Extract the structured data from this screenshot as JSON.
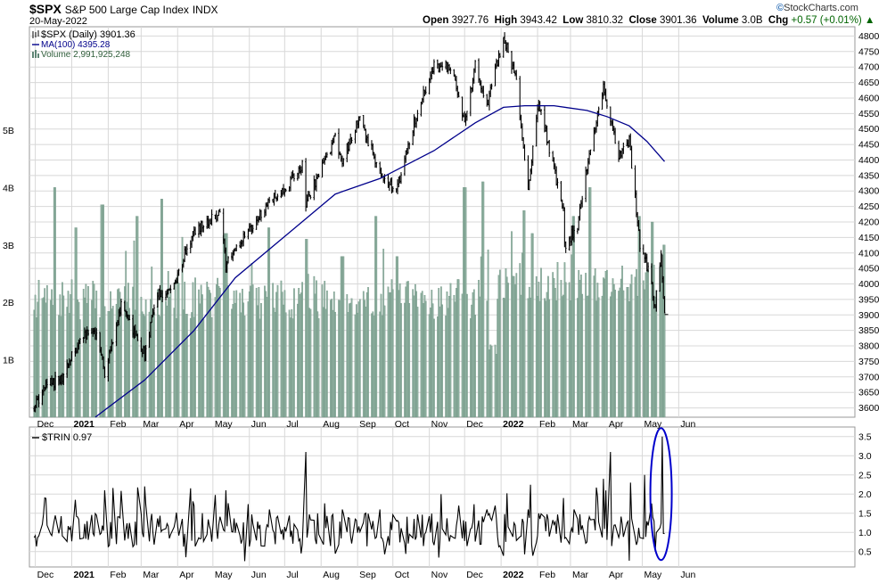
{
  "header": {
    "symbol": "$SPX",
    "name": "S&P 500 Large Cap Index",
    "exchange": "INDX",
    "date": "20-May-2022",
    "brand": "StockCharts.com",
    "open_label": "Open",
    "open": "3927.76",
    "high_label": "High",
    "high": "3943.42",
    "low_label": "Low",
    "low": "3810.32",
    "close_label": "Close",
    "close": "3901.36",
    "volume_label": "Volume",
    "volume": "3.0B",
    "chg_label": "Chg",
    "chg": "+0.57 (+0.01%)"
  },
  "colors": {
    "price": "#000000",
    "ma": "#00008b",
    "volume": "#8fb0a0",
    "volume_edge": "#5f8575",
    "highlight_ellipse": "#0000cc",
    "grid": "#d8d8d8"
  },
  "chart_data": [
    {
      "type": "line",
      "panel": "price",
      "legend": [
        {
          "label": "$SPX (Daily) 3901.36",
          "icon": "candlestick-icon"
        },
        {
          "label": "MA(100) 4395.28",
          "icon": "line-icon"
        },
        {
          "label": "Volume 2,991,925,248",
          "icon": "bar-icon"
        }
      ],
      "x_labels": [
        "Dec",
        "2021",
        "Feb",
        "Mar",
        "Apr",
        "May",
        "Jun",
        "Jul",
        "Aug",
        "Sep",
        "Oct",
        "Nov",
        "Dec",
        "2022",
        "Feb",
        "Mar",
        "Apr",
        "May",
        "Jun"
      ],
      "y_ticks": [
        3600,
        3650,
        3700,
        3750,
        3800,
        3850,
        3900,
        3950,
        4000,
        4050,
        4100,
        4150,
        4200,
        4250,
        4300,
        4350,
        4400,
        4450,
        4500,
        4550,
        4600,
        4650,
        4700,
        4750,
        4800
      ],
      "ylim": [
        3570,
        4830
      ],
      "volume_ticks": [
        "1B",
        "2B",
        "3B",
        "4B",
        "5B"
      ],
      "volume_ylim": [
        0,
        6.8
      ],
      "series": [
        {
          "name": "$SPX (Daily)",
          "style": "ohlc",
          "points": [
            [
              "2020-11-30",
              3600
            ],
            [
              "2020-12-10",
              3670
            ],
            [
              "2020-12-24",
              3700
            ],
            [
              "2021-01-08",
              3820
            ],
            [
              "2021-01-21",
              3850
            ],
            [
              "2021-01-29",
              3715
            ],
            [
              "2021-02-12",
              3930
            ],
            [
              "2021-03-04",
              3770
            ],
            [
              "2021-03-15",
              3970
            ],
            [
              "2021-03-26",
              3975
            ],
            [
              "2021-04-15",
              4170
            ],
            [
              "2021-05-07",
              4230
            ],
            [
              "2021-05-12",
              4060
            ],
            [
              "2021-06-15",
              4250
            ],
            [
              "2021-06-30",
              4300
            ],
            [
              "2021-07-16",
              4380
            ],
            [
              "2021-07-19",
              4260
            ],
            [
              "2021-08-13",
              4470
            ],
            [
              "2021-08-19",
              4400
            ],
            [
              "2021-09-02",
              4540
            ],
            [
              "2021-09-20",
              4360
            ],
            [
              "2021-10-04",
              4300
            ],
            [
              "2021-10-21",
              4550
            ],
            [
              "2021-11-05",
              4700
            ],
            [
              "2021-11-19",
              4700
            ],
            [
              "2021-12-01",
              4520
            ],
            [
              "2021-12-10",
              4710
            ],
            [
              "2021-12-20",
              4570
            ],
            [
              "2022-01-03",
              4800
            ],
            [
              "2022-01-14",
              4660
            ],
            [
              "2022-01-24",
              4300
            ],
            [
              "2022-02-02",
              4590
            ],
            [
              "2022-02-23",
              4230
            ],
            [
              "2022-02-24",
              4120
            ],
            [
              "2022-03-07",
              4190
            ],
            [
              "2022-03-17",
              4420
            ],
            [
              "2022-03-29",
              4630
            ],
            [
              "2022-04-11",
              4410
            ],
            [
              "2022-04-20",
              4460
            ],
            [
              "2022-04-29",
              4130
            ],
            [
              "2022-05-06",
              4050
            ],
            [
              "2022-05-12",
              3930
            ],
            [
              "2022-05-17",
              4090
            ],
            [
              "2022-05-20",
              3900
            ]
          ]
        },
        {
          "name": "MA(100)",
          "style": "line",
          "points": [
            [
              "2021-01-21",
              3570
            ],
            [
              "2021-03-04",
              3690
            ],
            [
              "2021-04-15",
              3850
            ],
            [
              "2021-05-20",
              4020
            ],
            [
              "2021-06-30",
              4150
            ],
            [
              "2021-08-13",
              4290
            ],
            [
              "2021-09-20",
              4340
            ],
            [
              "2021-11-05",
              4430
            ],
            [
              "2021-12-10",
              4520
            ],
            [
              "2022-01-03",
              4570
            ],
            [
              "2022-01-21",
              4575
            ],
            [
              "2022-02-15",
              4575
            ],
            [
              "2022-03-15",
              4560
            ],
            [
              "2022-04-01",
              4540
            ],
            [
              "2022-04-20",
              4510
            ],
            [
              "2022-05-05",
              4460
            ],
            [
              "2022-05-20",
              4395
            ]
          ]
        },
        {
          "name": "Volume",
          "style": "bar",
          "unit": "B",
          "points": [
            [
              "2020-12-18",
              4.0
            ],
            [
              "2021-01-04",
              3.3
            ],
            [
              "2021-01-27",
              3.7
            ],
            [
              "2021-02-26",
              3.5
            ],
            [
              "2021-03-19",
              3.8
            ],
            [
              "2021-05-12",
              3.2
            ],
            [
              "2021-06-18",
              3.3
            ],
            [
              "2021-07-19",
              3.1
            ],
            [
              "2021-08-19",
              2.8
            ],
            [
              "2021-09-17",
              3.5
            ],
            [
              "2021-10-04",
              2.8
            ],
            [
              "2021-11-26",
              2.4
            ],
            [
              "2021-12-01",
              4.0
            ],
            [
              "2021-12-17",
              4.1
            ],
            [
              "2021-12-27",
              1.1
            ],
            [
              "2022-01-21",
              3.6
            ],
            [
              "2022-01-28",
              3.2
            ],
            [
              "2022-03-04",
              3.5
            ],
            [
              "2022-03-18",
              4.0
            ],
            [
              "2022-04-29",
              3.5
            ],
            [
              "2022-05-09",
              3.4
            ],
            [
              "2022-05-20",
              3.0
            ]
          ]
        }
      ]
    },
    {
      "type": "line",
      "panel": "indicator",
      "legend": [
        {
          "label": "$TRIN 0.97",
          "icon": "line-icon"
        }
      ],
      "x_labels": [
        "Dec",
        "2021",
        "Feb",
        "Mar",
        "Apr",
        "May",
        "Jun",
        "Jul",
        "Aug",
        "Sep",
        "Oct",
        "Nov",
        "Dec",
        "2022",
        "Feb",
        "Mar",
        "Apr",
        "May",
        "Jun"
      ],
      "y_ticks": [
        0.5,
        1.0,
        1.5,
        2.0,
        2.5,
        3.0,
        3.5
      ],
      "y_tick_labels": [
        "0.5",
        "1.0",
        "1.5",
        "2.0",
        "2.5",
        "3.0",
        "3.5"
      ],
      "ylim": [
        0.1,
        3.75
      ],
      "series": [
        {
          "name": "$TRIN",
          "points": [
            [
              "2020-12-09",
              1.9
            ],
            [
              "2021-01-04",
              1.85
            ],
            [
              "2021-01-29",
              2.1
            ],
            [
              "2021-03-04",
              2.2
            ],
            [
              "2021-04-15",
              1.7
            ],
            [
              "2021-05-12",
              2.1
            ],
            [
              "2021-06-18",
              1.6
            ],
            [
              "2021-07-19",
              3.1
            ],
            [
              "2021-08-19",
              1.6
            ],
            [
              "2021-09-20",
              1.6
            ],
            [
              "2021-10-04",
              1.3
            ],
            [
              "2021-11-26",
              1.7
            ],
            [
              "2021-12-20",
              1.6
            ],
            [
              "2021-12-27",
              1.7
            ],
            [
              "2022-01-24",
              1.6
            ],
            [
              "2022-02-23",
              1.9
            ],
            [
              "2022-03-04",
              1.6
            ],
            [
              "2022-03-29",
              2.4
            ],
            [
              "2022-04-04",
              3.1
            ],
            [
              "2022-04-21",
              2.3
            ],
            [
              "2022-05-03",
              2.5
            ],
            [
              "2022-05-12",
              0.5
            ],
            [
              "2022-05-18",
              3.5
            ],
            [
              "2022-05-20",
              0.97
            ]
          ]
        }
      ],
      "annotations": [
        {
          "type": "ellipse",
          "note": "highlighted TRIN spike",
          "center": [
            "2022-05-17",
            2.0
          ]
        }
      ]
    }
  ]
}
